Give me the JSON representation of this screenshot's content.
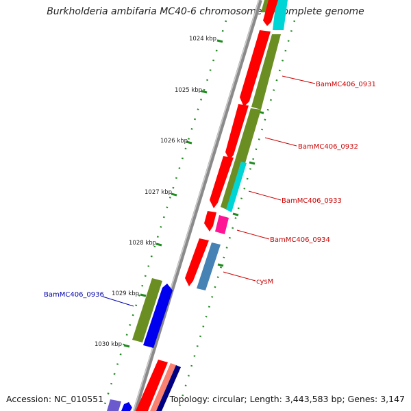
{
  "title": "Burkholderia ambifaria MC40-6 chromosome 1, complete genome",
  "footer": {
    "accession": "Accession: NC_010551",
    "topology": "Topology: circular; Length: 3,443,583 bp; Genes: 3,147"
  },
  "ruler": {
    "ticks": [
      "1024 kbp",
      "1025 kbp",
      "1026 kbp",
      "1027 kbp",
      "1028 kbp",
      "1029 kbp",
      "1030 kbp"
    ]
  },
  "gene_labels": [
    {
      "text": "BamMC406_0931",
      "color": "#cc0000"
    },
    {
      "text": "BamMC406_0932",
      "color": "#cc0000"
    },
    {
      "text": "BamMC406_0933",
      "color": "#cc0000"
    },
    {
      "text": "BamMC406_0934",
      "color": "#cc0000"
    },
    {
      "text": "cysM",
      "color": "#cc0000"
    },
    {
      "text": "BamMC406_0936",
      "color": "#0000aa"
    }
  ],
  "colors": {
    "backbone": "#8a8a8a",
    "ruler": "#1f8a1f",
    "cds_forward": "#ff0000",
    "olive_feature": "#6b8e23",
    "cyan_feature": "#00d5d5",
    "magenta_feature": "#ff1493",
    "steelblue_feature": "#4682b4",
    "blue_feature": "#0000ee"
  }
}
